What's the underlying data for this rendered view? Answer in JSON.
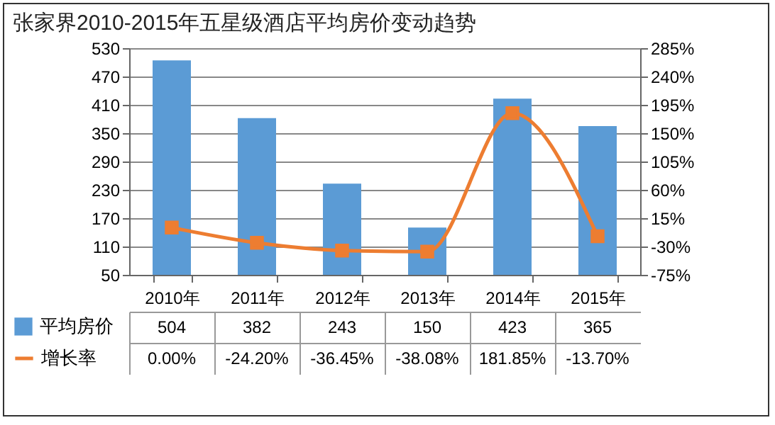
{
  "chart_data": {
    "type": "bar",
    "title": "张家界2010-2015年五星级酒店平均房价变动趋势",
    "categories": [
      "2010年",
      "2011年",
      "2012年",
      "2013年",
      "2014年",
      "2015年"
    ],
    "series": [
      {
        "name": "平均房价",
        "color": "#5b9bd5",
        "values": [
          504,
          382,
          243,
          150,
          423,
          365
        ],
        "value_labels": [
          "504",
          "382",
          "243",
          "150",
          "423",
          "365"
        ]
      },
      {
        "name": "增长率",
        "type": "line",
        "axis": "y2",
        "color": "#ed7d31",
        "values": [
          0,
          -24.2,
          -36.45,
          -38.08,
          181.85,
          -13.7
        ],
        "value_labels": [
          "0.00%",
          "-24.20%",
          "-36.45%",
          "-38.08%",
          "181.85%",
          "-13.70%"
        ]
      }
    ],
    "ylim": [
      50,
      530
    ],
    "yticks": [
      50,
      110,
      170,
      230,
      290,
      350,
      410,
      470,
      530
    ],
    "y2lim": [
      -75,
      285
    ],
    "y2ticks": [
      {
        "value": -75,
        "label": "-75%"
      },
      {
        "value": -30,
        "label": "-30%"
      },
      {
        "value": 15,
        "label": "15%"
      },
      {
        "value": 60,
        "label": "60%"
      },
      {
        "value": 105,
        "label": "105%"
      },
      {
        "value": 150,
        "label": "150%"
      },
      {
        "value": 195,
        "label": "195%"
      },
      {
        "value": 240,
        "label": "240%"
      },
      {
        "value": 285,
        "label": "285%"
      }
    ],
    "grid": "y",
    "legend": "bottom left",
    "marker": "square",
    "line_style": "solid"
  }
}
